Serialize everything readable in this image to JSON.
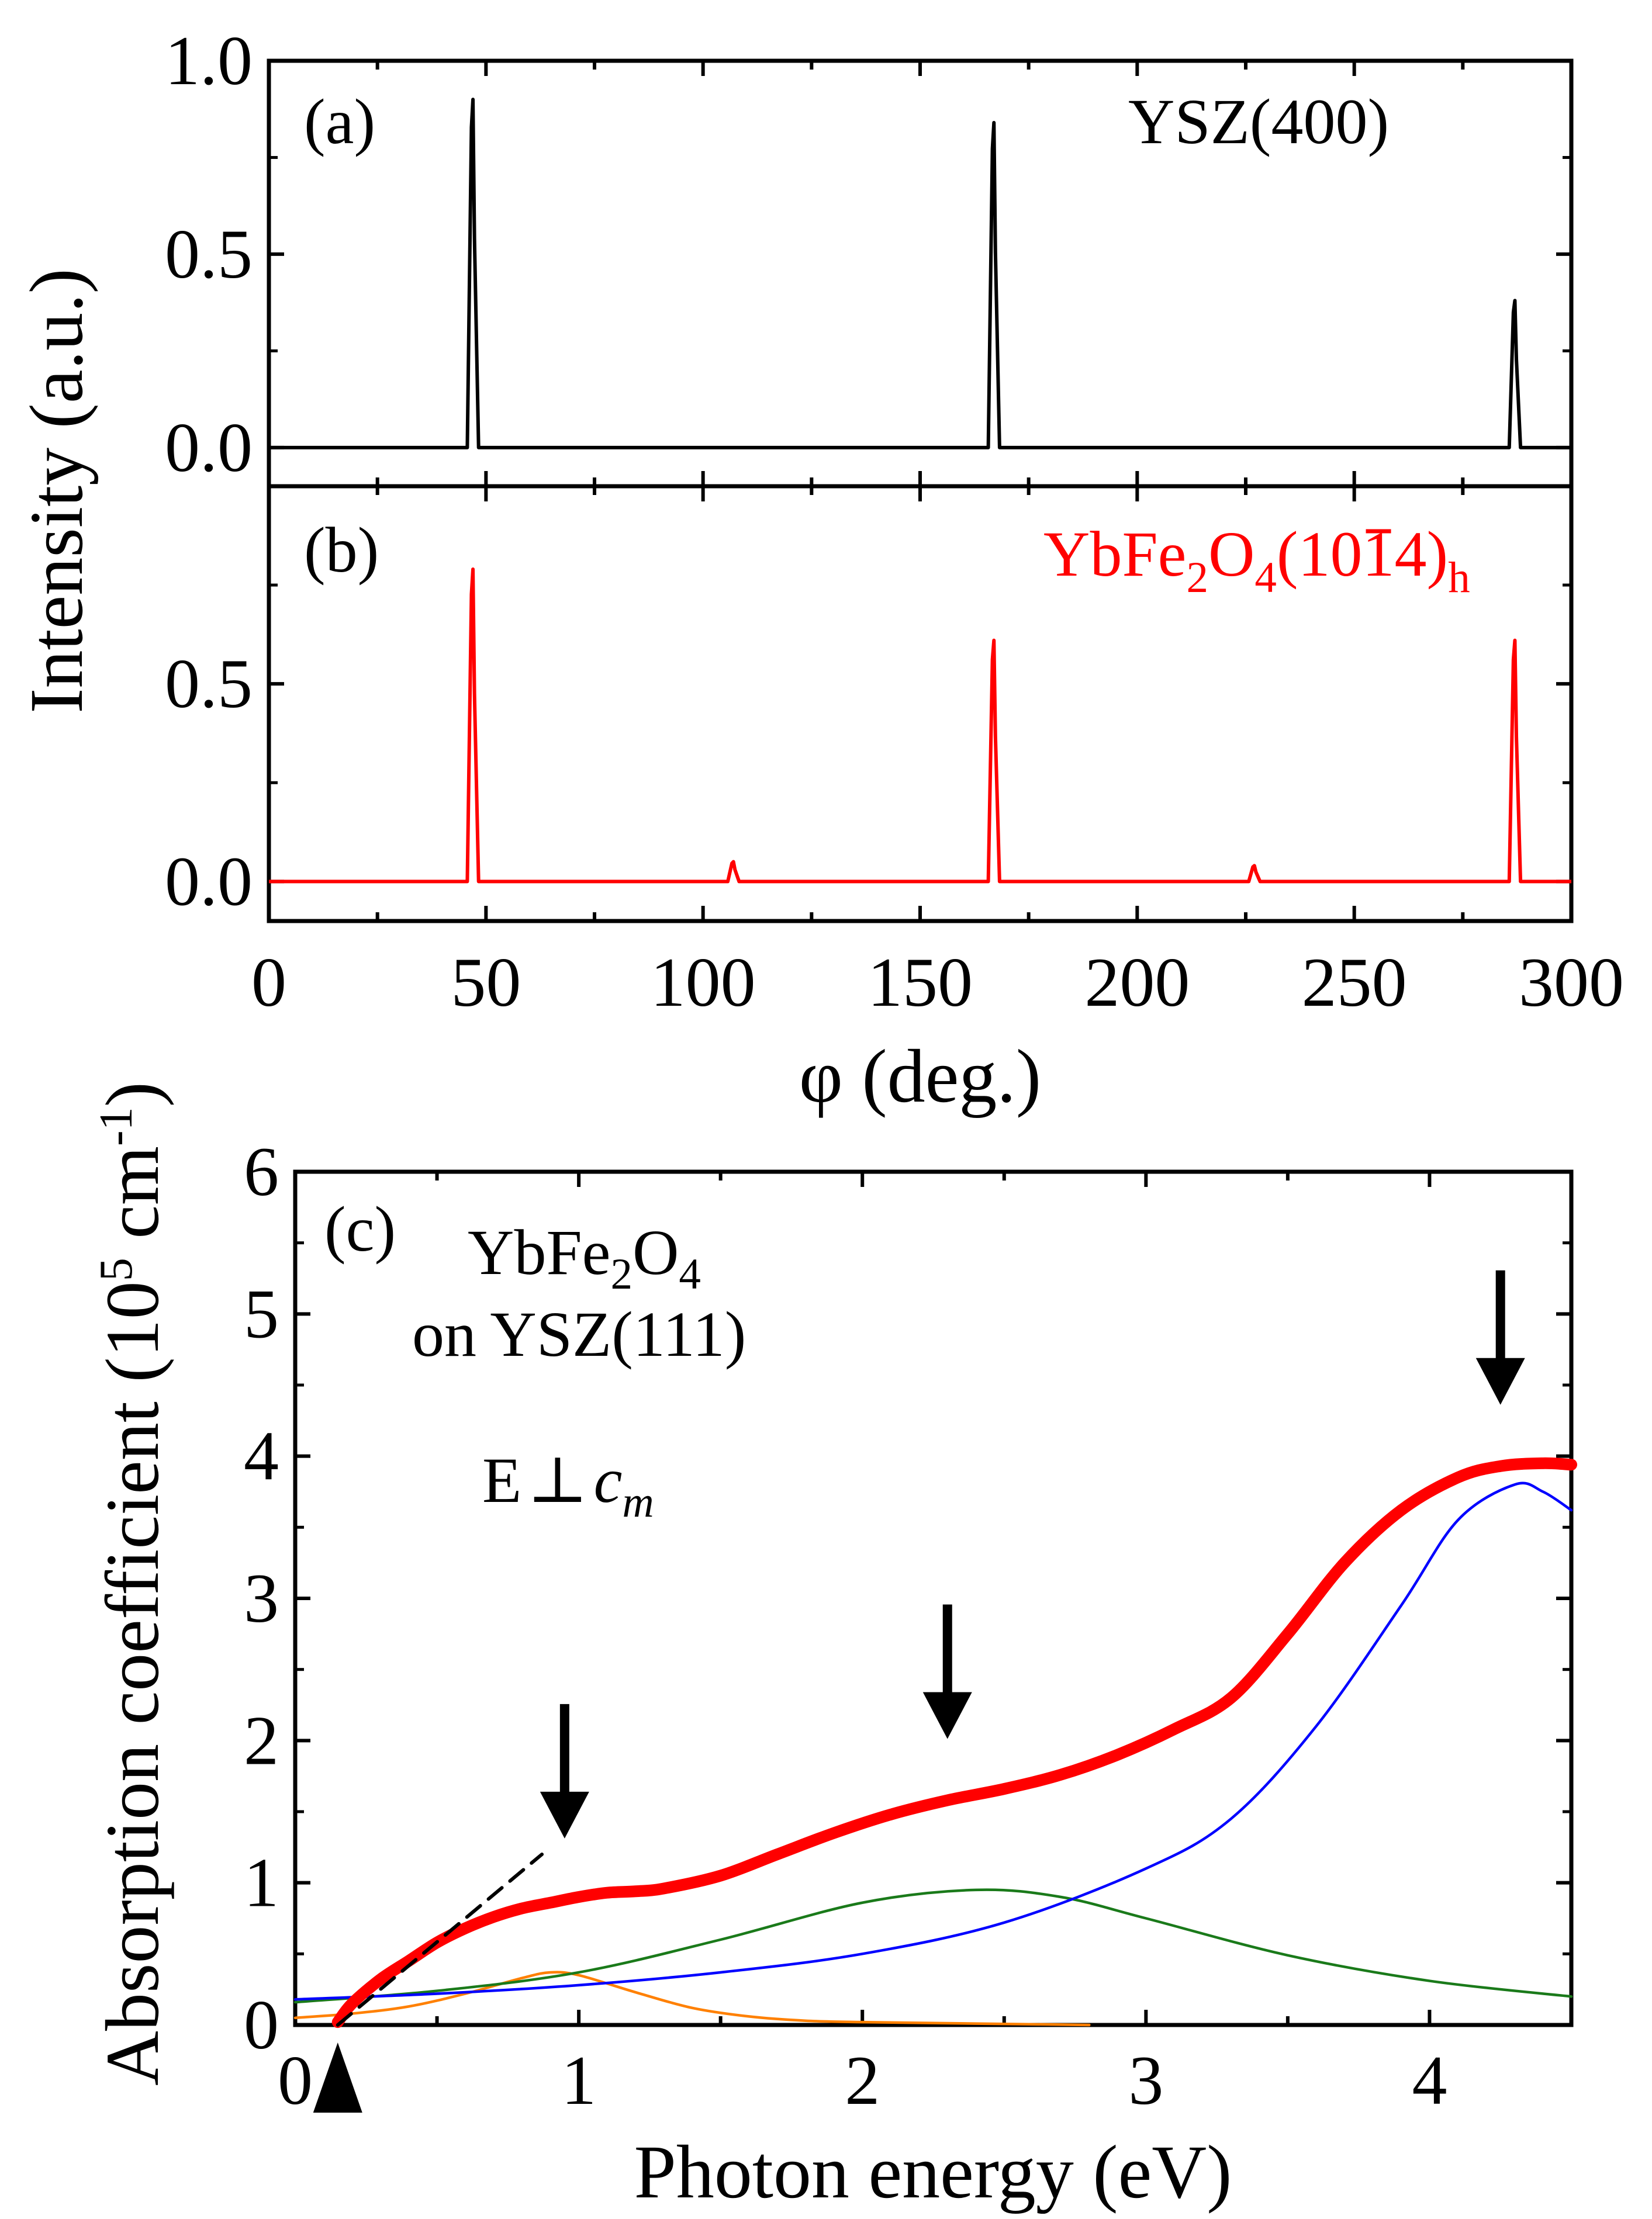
{
  "colors": {
    "black": "#000000",
    "red": "#ff0000",
    "blue": "#0000ff",
    "green": "#1a7a1a",
    "orange": "#ff8000"
  },
  "chart_data": [
    {
      "panel": "(a)",
      "type": "line",
      "series_label": "YSZ(400)",
      "xlabel": "φ (deg.)",
      "ylabel": "Intensity (a.u.)",
      "xlim": [
        0,
        300
      ],
      "ylim": [
        -0.1,
        1.0
      ],
      "yticks": [
        "0.0",
        "0.5",
        "1.0"
      ],
      "peaks": [
        {
          "x": 47,
          "y": 0.9
        },
        {
          "x": 167,
          "y": 0.84
        },
        {
          "x": 287,
          "y": 0.38
        }
      ]
    },
    {
      "panel": "(b)",
      "type": "line",
      "series_label_parts": [
        "YbFe",
        "2",
        "O",
        "4",
        "(10",
        "1",
        "4)",
        "h"
      ],
      "xlim": [
        0,
        300
      ],
      "ylim": [
        -0.1,
        1.0
      ],
      "yticks": [
        "0.0",
        "0.5"
      ],
      "xticks": [
        "0",
        "50",
        "100",
        "150",
        "200",
        "250",
        "300"
      ],
      "peaks": [
        {
          "x": 47,
          "y": 0.79
        },
        {
          "x": 107,
          "y": 0.05
        },
        {
          "x": 167,
          "y": 0.61
        },
        {
          "x": 227,
          "y": 0.04
        },
        {
          "x": 287,
          "y": 0.61
        }
      ]
    },
    {
      "panel": "(c)",
      "type": "line",
      "xlabel": "Photon energy (eV)",
      "ylabel_parts": [
        "Absorption coefficient (10",
        "5",
        " cm",
        "-1",
        ")"
      ],
      "sample_parts": [
        "YbFe",
        "2",
        "O",
        "4"
      ],
      "substrate": "on YSZ(111)",
      "polarization_parts": [
        "E",
        "⊥",
        "c",
        "m"
      ],
      "xlim": [
        0,
        4.5
      ],
      "ylim": [
        0,
        6
      ],
      "xticks": [
        "0",
        "1",
        "2",
        "3",
        "4"
      ],
      "yticks": [
        "0",
        "1",
        "2",
        "3",
        "4",
        "5",
        "6"
      ],
      "arrows_x": [
        0.95,
        2.3,
        4.25
      ],
      "band_edge_x": 0.15,
      "series": [
        {
          "name": "measured",
          "color": "red",
          "x": [
            0.15,
            0.2,
            0.3,
            0.4,
            0.5,
            0.6,
            0.7,
            0.8,
            0.9,
            1.0,
            1.1,
            1.2,
            1.3,
            1.5,
            1.7,
            1.9,
            2.1,
            2.3,
            2.5,
            2.7,
            2.9,
            3.1,
            3.3,
            3.5,
            3.7,
            3.9,
            4.1,
            4.25,
            4.4,
            4.5
          ],
          "y": [
            0.02,
            0.15,
            0.32,
            0.45,
            0.58,
            0.68,
            0.76,
            0.82,
            0.86,
            0.9,
            0.93,
            0.94,
            0.96,
            1.05,
            1.2,
            1.35,
            1.48,
            1.58,
            1.66,
            1.76,
            1.9,
            2.08,
            2.3,
            2.75,
            3.25,
            3.62,
            3.85,
            3.93,
            3.95,
            3.94
          ]
        },
        {
          "name": "linear-extrapolation",
          "color": "black",
          "dashed": true,
          "x": [
            0.15,
            0.87
          ],
          "y": [
            0.0,
            1.2
          ]
        },
        {
          "name": "orange-component",
          "color": "orange",
          "x": [
            0.0,
            0.2,
            0.4,
            0.6,
            0.8,
            0.9,
            1.0,
            1.2,
            1.4,
            1.6,
            1.8,
            2.0,
            2.4,
            2.8
          ],
          "y": [
            0.05,
            0.08,
            0.13,
            0.22,
            0.33,
            0.37,
            0.35,
            0.23,
            0.12,
            0.06,
            0.03,
            0.02,
            0.01,
            0.0
          ]
        },
        {
          "name": "green-component",
          "color": "green",
          "x": [
            0.0,
            0.5,
            1.0,
            1.5,
            2.0,
            2.4,
            2.7,
            3.0,
            3.5,
            4.0,
            4.5
          ],
          "y": [
            0.16,
            0.24,
            0.37,
            0.6,
            0.86,
            0.95,
            0.9,
            0.75,
            0.49,
            0.31,
            0.2
          ]
        },
        {
          "name": "blue-component",
          "color": "blue",
          "x": [
            0.0,
            0.5,
            1.0,
            1.5,
            2.0,
            2.5,
            3.0,
            3.3,
            3.6,
            3.9,
            4.1,
            4.3,
            4.4,
            4.5
          ],
          "y": [
            0.18,
            0.22,
            0.28,
            0.37,
            0.5,
            0.72,
            1.1,
            1.45,
            2.1,
            2.95,
            3.55,
            3.8,
            3.75,
            3.62
          ]
        }
      ]
    }
  ]
}
